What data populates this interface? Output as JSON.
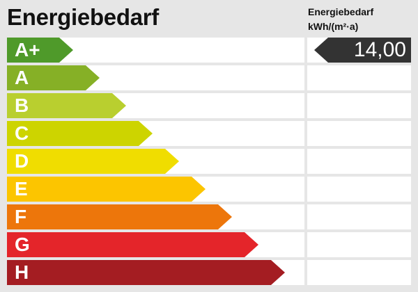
{
  "title": "Energiebedarf",
  "subtitle_line1": "Energiebedarf",
  "subtitle_line2": "kWh/(m²·a)",
  "classes": [
    {
      "label": "A+",
      "color": "#4f9a2a"
    },
    {
      "label": "A",
      "color": "#86b026"
    },
    {
      "label": "B",
      "color": "#b9cf2f"
    },
    {
      "label": "C",
      "color": "#cdd400"
    },
    {
      "label": "D",
      "color": "#f0dd00"
    },
    {
      "label": "E",
      "color": "#fcc500"
    },
    {
      "label": "F",
      "color": "#ed760b"
    },
    {
      "label": "G",
      "color": "#e4252a"
    },
    {
      "label": "H",
      "color": "#a41d22"
    }
  ],
  "marker": {
    "value": "14,00",
    "class_index": 0,
    "color": "#333333"
  }
}
